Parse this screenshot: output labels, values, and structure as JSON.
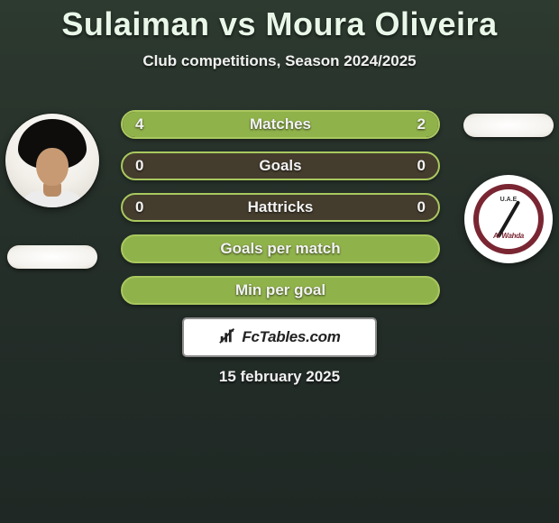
{
  "title": "Sulaiman vs Moura Oliveira",
  "subtitle": "Club competitions, Season 2024/2025",
  "date": "15 february 2025",
  "footer_brand": "FcTables.com",
  "player_left": {
    "name": "Sulaiman"
  },
  "player_right": {
    "name": "Moura Oliveira"
  },
  "club_right_logo": {
    "top_text": "U.A.E",
    "script_text": "Al Wahda"
  },
  "colors": {
    "green_title": "#e9f7e9",
    "pill_green": "#90b24b",
    "pill_border": "#a9c85f",
    "track_bg": "rgba(74,62,46,0.85)",
    "club_ring": "#7a2632"
  },
  "stats": [
    {
      "label": "Matches",
      "left_value": "4",
      "right_value": "2",
      "left_fill_pct": 63,
      "right_fill_pct": 37,
      "has_values": true
    },
    {
      "label": "Goals",
      "left_value": "0",
      "right_value": "0",
      "left_fill_pct": 0,
      "right_fill_pct": 0,
      "has_values": true
    },
    {
      "label": "Hattricks",
      "left_value": "0",
      "right_value": "0",
      "left_fill_pct": 0,
      "right_fill_pct": 0,
      "has_values": true
    },
    {
      "label": "Goals per match",
      "has_values": false
    },
    {
      "label": "Min per goal",
      "has_values": false
    }
  ]
}
